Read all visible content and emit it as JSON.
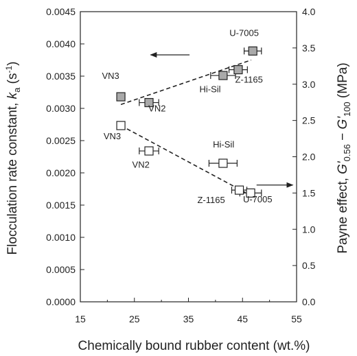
{
  "chart_data": {
    "type": "scatter",
    "xlabel": "Chemically bound rubber content (wt.%)",
    "ylabel_left": [
      "Flocculation rate constant, ",
      "k",
      "a",
      " (s",
      "-1",
      ")"
    ],
    "ylabel_right": [
      "Payne effect, ",
      "G'",
      "0.56",
      " − ",
      "G'",
      "100",
      " (MPa)"
    ],
    "x_axis": {
      "min": 15,
      "max": 55,
      "ticks": [
        "15",
        "25",
        "35",
        "45",
        "55"
      ],
      "tick_values": [
        15,
        25,
        35,
        45,
        55
      ]
    },
    "y_left": {
      "min": 0,
      "max": 0.0045,
      "ticks": [
        "0.0000",
        "0.0005",
        "0.0010",
        "0.0015",
        "0.0020",
        "0.0025",
        "0.0030",
        "0.0035",
        "0.0040",
        "0.0045"
      ],
      "tick_values": [
        0,
        0.0005,
        0.001,
        0.0015,
        0.002,
        0.0025,
        0.003,
        0.0035,
        0.004,
        0.0045
      ]
    },
    "y_right": {
      "min": 0,
      "max": 4.0,
      "ticks": [
        "0.0",
        "0.5",
        "1.0",
        "1.5",
        "2.0",
        "2.5",
        "3.0",
        "3.5",
        "4.0"
      ],
      "tick_values": [
        0,
        0.5,
        1.0,
        1.5,
        2.0,
        2.5,
        3.0,
        3.5,
        4.0
      ]
    },
    "series": [
      {
        "axis": "left",
        "marker": "filled-square",
        "fill": "#a9a9a9",
        "points": [
          {
            "label": "VN3",
            "x": 22.5,
            "y": 0.00318,
            "xerr": 0
          },
          {
            "label": "VN2",
            "x": 27.7,
            "y": 0.00309,
            "xerr": 1.8
          },
          {
            "label": "Hi-Sil",
            "x": 41.4,
            "y": 0.00351,
            "xerr": 2.3
          },
          {
            "label": "Z-1165",
            "x": 44.2,
            "y": 0.0036,
            "xerr": 1.7
          },
          {
            "label": "U-7005",
            "x": 46.9,
            "y": 0.00389,
            "xerr": 1.6
          }
        ],
        "trend": {
          "x": [
            22.5,
            46.6
          ],
          "y": [
            0.00306,
            0.00375
          ]
        }
      },
      {
        "axis": "right",
        "marker": "open-square",
        "fill": "#ffffff",
        "points": [
          {
            "label": "VN3",
            "x": 22.5,
            "y": 2.43,
            "xerr": 0
          },
          {
            "label": "VN2",
            "x": 27.7,
            "y": 2.08,
            "xerr": 1.8
          },
          {
            "label": "Hi-Sil",
            "x": 41.4,
            "y": 1.91,
            "xerr": 2.6
          },
          {
            "label": "Z-1165",
            "x": 44.4,
            "y": 1.54,
            "xerr": 1.4
          },
          {
            "label": "U-7005",
            "x": 46.5,
            "y": 1.5,
            "xerr": 2.0
          }
        ],
        "trend": {
          "x": [
            22.5,
            46.2
          ],
          "y": [
            2.43,
            1.48
          ]
        }
      }
    ],
    "annotations": [
      {
        "text": "U-7005",
        "x": 45.3,
        "y": 0.00412,
        "axis": "left"
      },
      {
        "text": "VN3",
        "x": 20.6,
        "y": 0.00346,
        "axis": "left"
      },
      {
        "text": "VN2",
        "x": 29.2,
        "y": 0.00295,
        "axis": "left"
      },
      {
        "text": "Hi-Sil",
        "x": 39.0,
        "y": 0.00325,
        "axis": "left"
      },
      {
        "text": "Z-1165",
        "x": 46.2,
        "y": 0.0034,
        "axis": "left"
      },
      {
        "text": "VN3",
        "x": 20.9,
        "y": 2.24,
        "axis": "right"
      },
      {
        "text": "VN2",
        "x": 26.2,
        "y": 1.85,
        "axis": "right"
      },
      {
        "text": "Hi-Sil",
        "x": 41.5,
        "y": 2.13,
        "axis": "right"
      },
      {
        "text": "Z-1165",
        "x": 39.2,
        "y": 1.36,
        "axis": "right"
      },
      {
        "text": "U-7005",
        "x": 47.8,
        "y": 1.37,
        "axis": "right"
      }
    ],
    "arrows": [
      {
        "direction": "left",
        "axis": "left",
        "x_from": 35.2,
        "x_to": 28.0,
        "y": 0.00383
      },
      {
        "direction": "right",
        "axis": "right",
        "x_from": 47.6,
        "x_to": 54.3,
        "y": 1.61
      }
    ]
  }
}
